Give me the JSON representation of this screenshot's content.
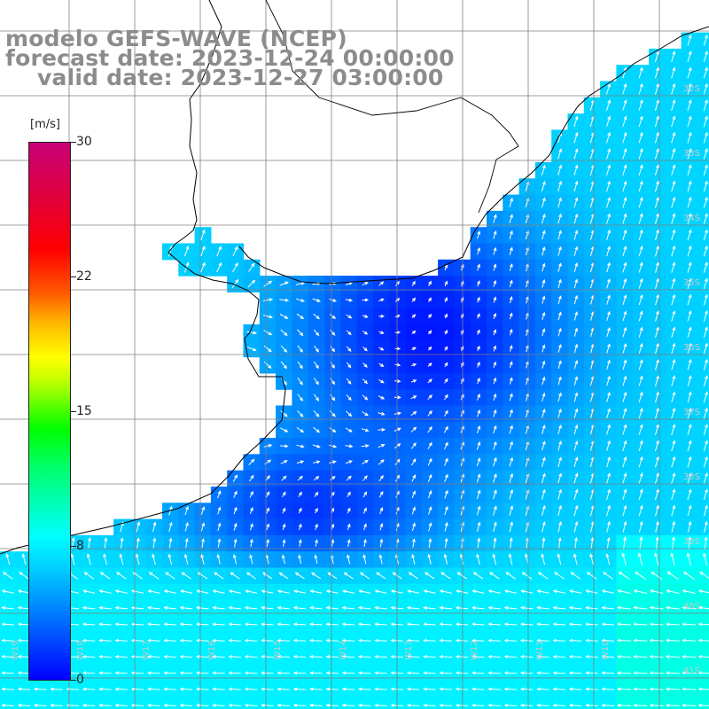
{
  "title": {
    "model": "modelo GEFS-WAVE (NCEP)",
    "forecast": "forecast date: 2023-12-24 00:00:00",
    "valid": "valid date: 2023-12-27 03:00:00"
  },
  "legend": {
    "unit": "[m/s]",
    "ticks": [
      "30",
      "22",
      "15",
      "8",
      "0"
    ],
    "min": 0,
    "max": 30
  },
  "axis": {
    "lat_labels": [
      "32S",
      "33S",
      "34S",
      "35S",
      "36S",
      "37S",
      "38S",
      "39S",
      "40S",
      "41S"
    ],
    "lon_labels": [
      "W19",
      "W18",
      "W17",
      "W16",
      "W15",
      "W14",
      "W13",
      "W12",
      "W11",
      "W10"
    ]
  },
  "colors": {
    "land": "#ffffff",
    "grid": "#7f7f7f",
    "coast": "#000000",
    "arrows": "#ffffff",
    "speed_low": "#0000ff",
    "speed_mid": "#00c8ff",
    "speed_8": "#00ffff"
  },
  "field": {
    "variable": "wind speed and direction",
    "units": "m/s",
    "calm_center_1": {
      "lon_index": 12,
      "lat_index": 6,
      "speed": 0.5
    },
    "calm_center_2": {
      "lon_index": 9,
      "lat_index": 12,
      "speed": 1
    },
    "offshore_speed": 6.5,
    "southern_band_speed": 7.5
  }
}
